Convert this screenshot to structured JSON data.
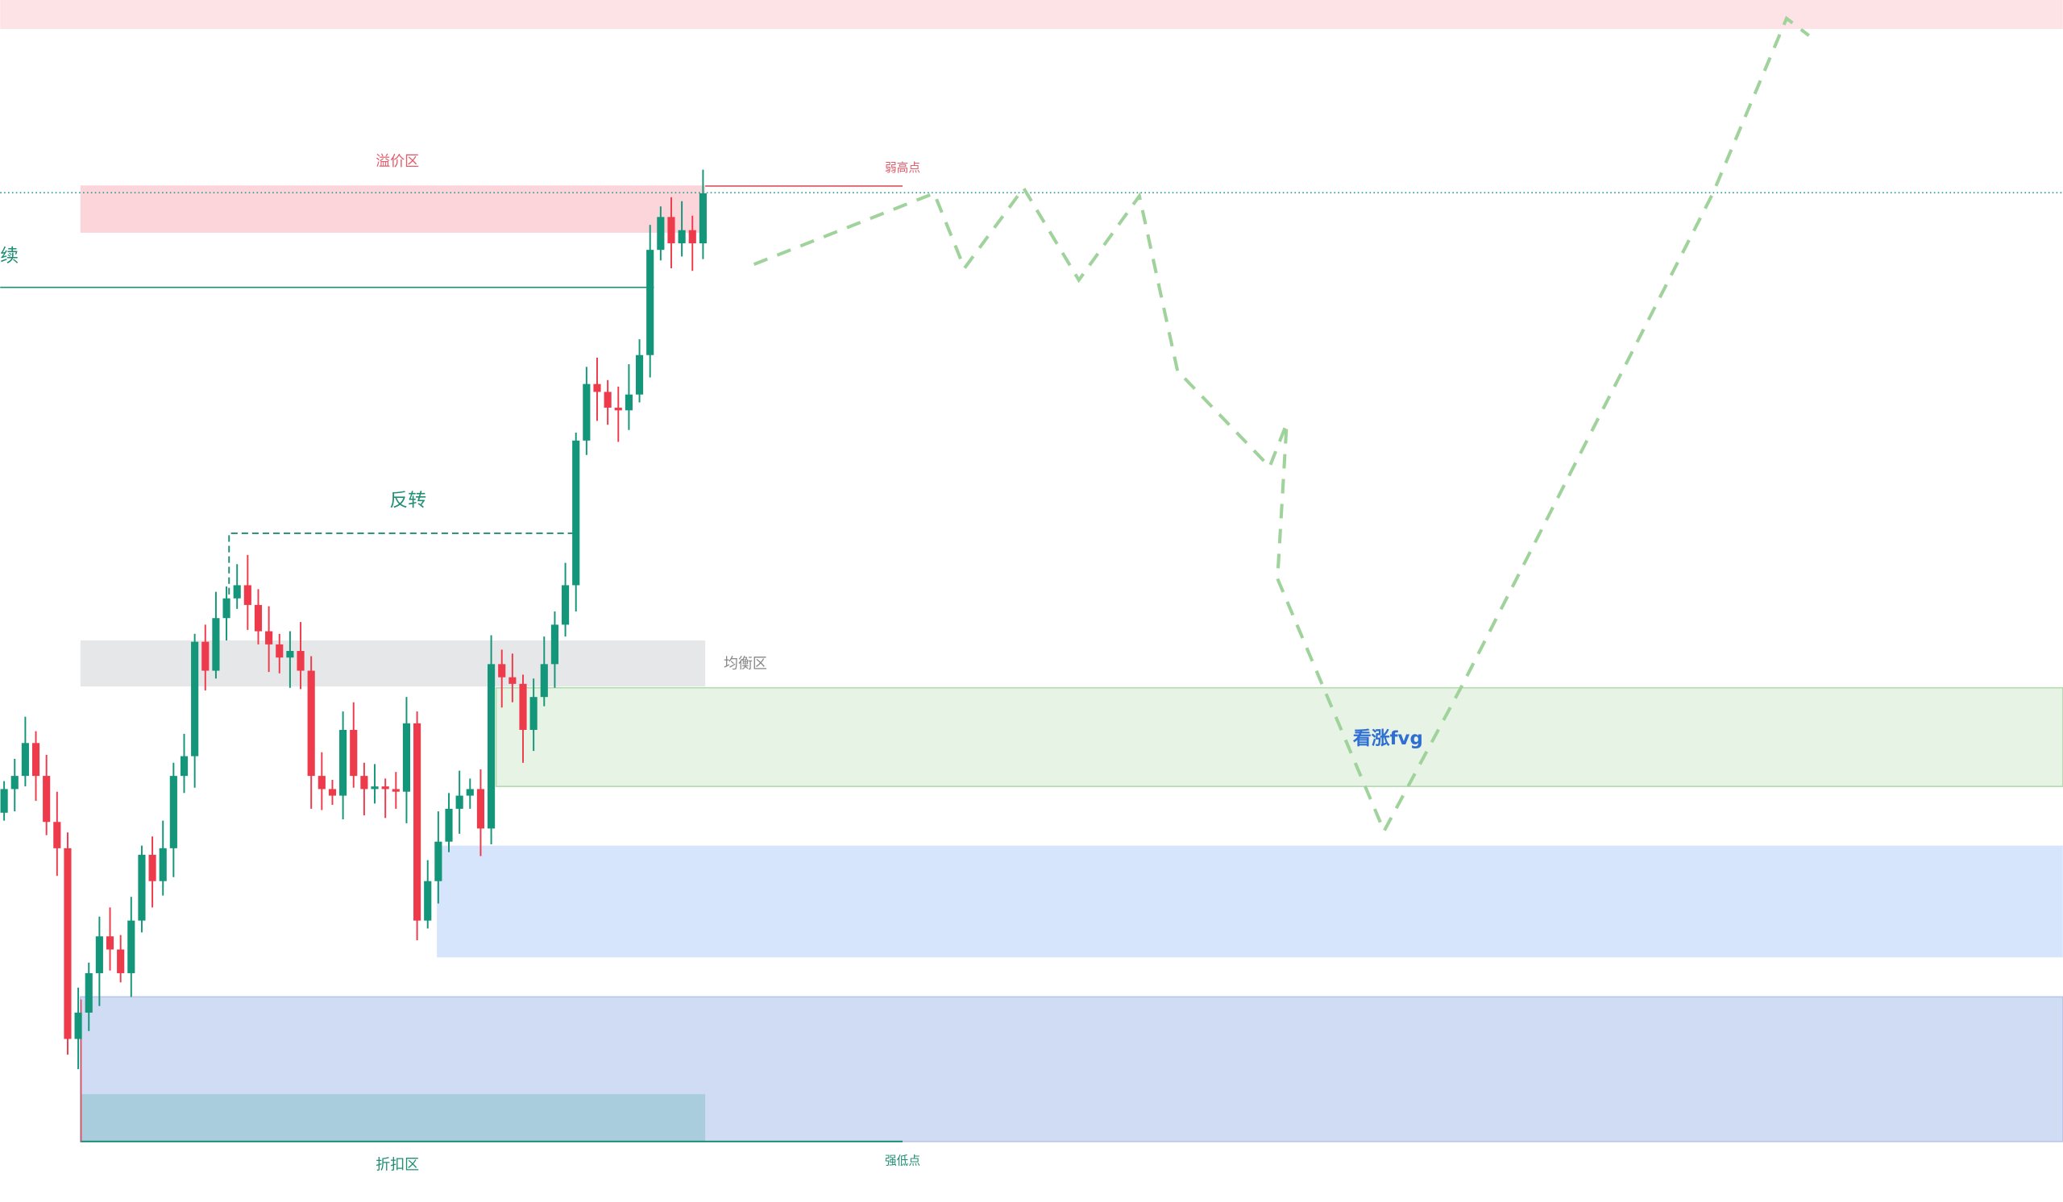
{
  "labels": {
    "premium": "溢价区",
    "weak_high": "弱高点",
    "continue": "续",
    "reversal": "反转",
    "equilibrium": "均衡区",
    "bullish_fvg": "看涨fvg",
    "discount": "折扣区",
    "strong_low": "强低点"
  }
}
